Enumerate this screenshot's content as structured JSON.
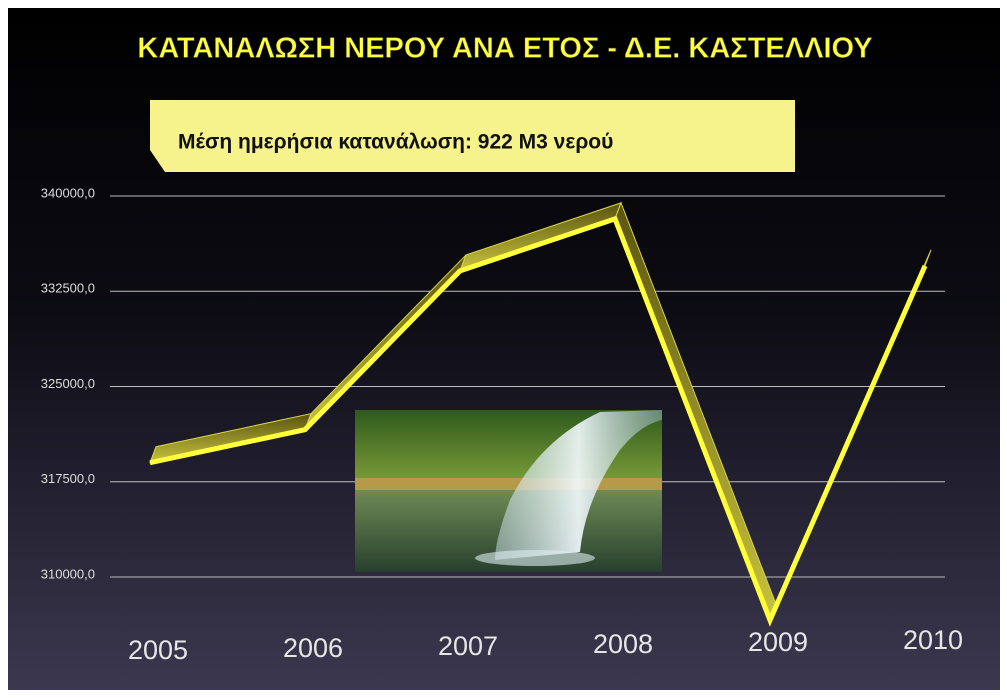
{
  "chart_data": {
    "type": "line",
    "title": "ΚΑΤΑΝΑΛΩΣΗ ΝΕΡΟΥ ΑΝΑ ΕΤΟΣ - Δ.Ε. ΚΑΣΤΕΛΛΙΟΥ",
    "annotation": "Μέση ημερήσια κατανάλωση: 922 Μ3 νερού",
    "categories": [
      "2005",
      "2006",
      "2007",
      "2008",
      "2009",
      "2010"
    ],
    "values": [
      319000,
      321600,
      334100,
      338200,
      306600,
      334500
    ],
    "color": "#ffff3c",
    "ylim": [
      306000,
      342000
    ],
    "yticks": [
      {
        "value": 310000,
        "label": "310000,0"
      },
      {
        "value": 317500,
        "label": "317500,0"
      },
      {
        "value": 325000,
        "label": "325000,0"
      },
      {
        "value": 332500,
        "label": "332500,0"
      },
      {
        "value": 340000,
        "label": "340000,0"
      }
    ],
    "grid": true
  }
}
